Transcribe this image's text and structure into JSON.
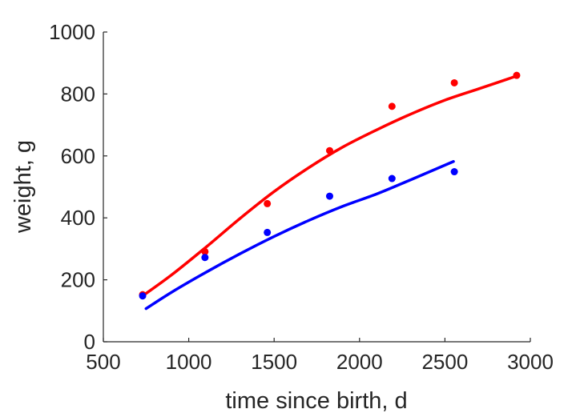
{
  "chart_data": {
    "type": "scatter",
    "xlabel": "time since birth, d",
    "ylabel": "weight, g",
    "xlim": [
      500,
      3000
    ],
    "ylim": [
      0,
      1000
    ],
    "xticks": [
      "500",
      "1000",
      "1500",
      "2000",
      "2500",
      "3000"
    ],
    "yticks": [
      "0",
      "200",
      "400",
      "600",
      "800",
      "1000"
    ],
    "grid": false,
    "legend": "none",
    "series": [
      {
        "color": "#ff0000",
        "points": {
          "x": [
            730,
            1095,
            1460,
            1825,
            2190,
            2555,
            2920
          ],
          "y": [
            152,
            291,
            446,
            617,
            760,
            836,
            860
          ]
        },
        "fit": {
          "x": [
            730,
            900,
            1100,
            1300,
            1500,
            1700,
            1900,
            2100,
            2300,
            2500,
            2700,
            2920
          ],
          "y": [
            148,
            216,
            305,
            398,
            485,
            561,
            628,
            684,
            735,
            780,
            817,
            858
          ]
        }
      },
      {
        "color": "#0000ff",
        "points": {
          "x": [
            730,
            1095,
            1460,
            1825,
            2190,
            2555
          ],
          "y": [
            148,
            272,
            353,
            470,
            527,
            549
          ]
        },
        "fit": {
          "x": [
            750,
            900,
            1100,
            1300,
            1500,
            1700,
            1900,
            2100,
            2300,
            2550
          ],
          "y": [
            107,
            160,
            224,
            284,
            340,
            391,
            437,
            477,
            523,
            582
          ]
        }
      }
    ]
  }
}
